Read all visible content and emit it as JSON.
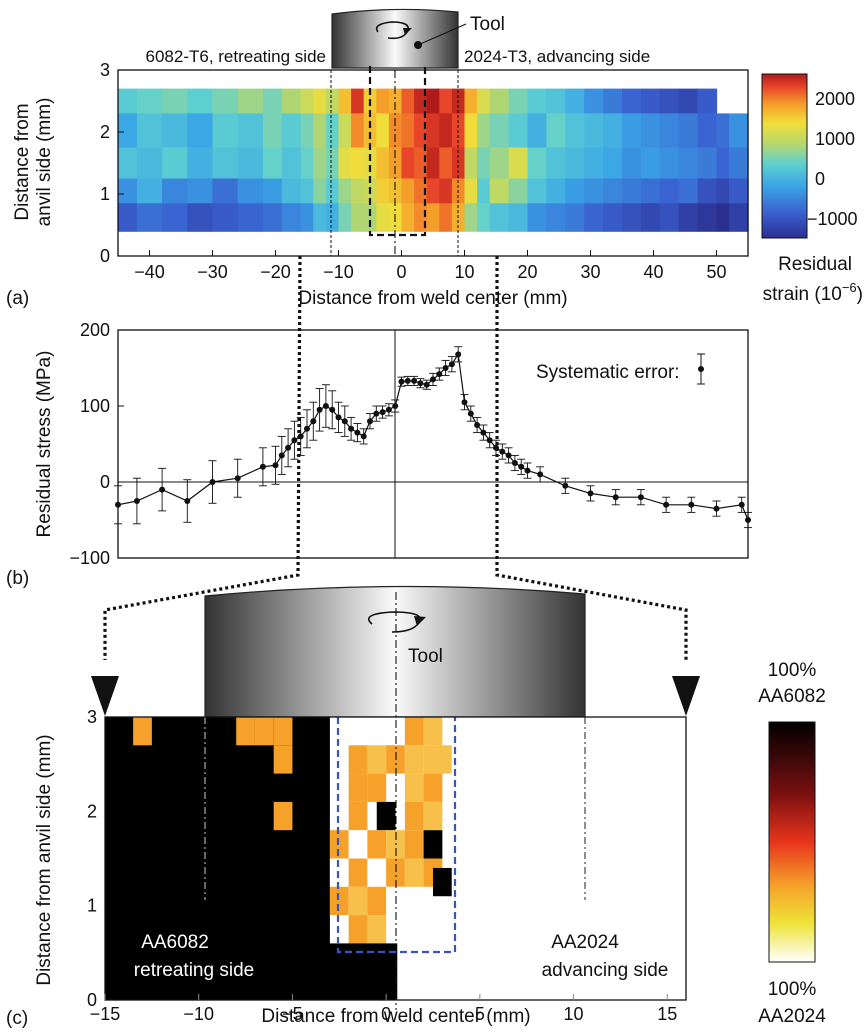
{
  "panels": {
    "a": {
      "panel_label": "(a)",
      "left_material": "6082-T6, retreating side",
      "right_material": "2024-T3, advancing side",
      "tool_label": "Tool",
      "colorbar_title_line1": "Residual",
      "colorbar_title_line2": "strain (10",
      "colorbar_title_exp": "−6",
      "colorbar_title_close": ")",
      "colorbar_ticks": [
        "2000",
        "1000",
        "0",
        "−1000"
      ]
    },
    "b": {
      "panel_label": "(b)",
      "systematic_error_label": "Systematic error:"
    },
    "c": {
      "panel_label": "(c)",
      "tool_label": "Tool",
      "left_region_line1": "AA6082",
      "left_region_line2": "retreating side",
      "right_region_line1": "AA2024",
      "right_region_line2": "advancing side",
      "colorbar_top_line1": "100%",
      "colorbar_top_line2": "AA6082",
      "colorbar_bottom_line1": "100%",
      "colorbar_bottom_line2": "AA2024"
    }
  },
  "colors": {
    "tool_dark": "#2a2a2a",
    "tool_light": "#ffffff",
    "blue_dash": "#3a55b8",
    "orange_cell": "#f5a12a",
    "gold_cell": "#f7c04a"
  },
  "chart_data": [
    {
      "type": "heatmap",
      "xlabel": "Distance from weld center (mm)",
      "ylabel_line1": "Distance from",
      "ylabel_line2": "anvil side (mm)",
      "xlim": [
        -45,
        55
      ],
      "ylim": [
        0,
        3
      ],
      "xticks": [
        "−40",
        "−30",
        "−20",
        "−10",
        "0",
        "10",
        "20",
        "30",
        "40",
        "50"
      ],
      "yticks": [
        "0",
        "1",
        "2",
        "3"
      ],
      "color_range": [
        -1300,
        2400
      ],
      "rows_y": [
        2.5,
        2.0,
        1.5,
        1.0,
        0.6
      ],
      "columns": [
        {
          "x0": -45,
          "x1": -42,
          "v": [
            300,
            -100,
            200,
            -300,
            -800
          ]
        },
        {
          "x0": -42,
          "x1": -38,
          "v": [
            400,
            200,
            100,
            0,
            -600
          ]
        },
        {
          "x0": -38,
          "x1": -34,
          "v": [
            500,
            100,
            300,
            -400,
            -700
          ]
        },
        {
          "x0": -34,
          "x1": -30,
          "v": [
            350,
            -100,
            0,
            -300,
            -900
          ]
        },
        {
          "x0": -30,
          "x1": -26,
          "v": [
            500,
            300,
            200,
            -600,
            -800
          ]
        },
        {
          "x0": -26,
          "x1": -22,
          "v": [
            700,
            200,
            100,
            -300,
            -700
          ]
        },
        {
          "x0": -22,
          "x1": -19,
          "v": [
            500,
            500,
            400,
            -200,
            -600
          ]
        },
        {
          "x0": -19,
          "x1": -16,
          "v": [
            800,
            300,
            200,
            100,
            -400
          ]
        },
        {
          "x0": -16,
          "x1": -14,
          "v": [
            1000,
            500,
            400,
            200,
            -300
          ]
        },
        {
          "x0": -14,
          "x1": -12,
          "v": [
            1200,
            800,
            700,
            600,
            100
          ]
        },
        {
          "x0": -12,
          "x1": -10,
          "v": [
            900,
            400,
            500,
            300,
            0
          ]
        },
        {
          "x0": -10,
          "x1": -8,
          "v": [
            1500,
            1000,
            1200,
            700,
            500
          ]
        },
        {
          "x0": -8,
          "x1": -6,
          "v": [
            2200,
            1800,
            1300,
            900,
            800
          ]
        },
        {
          "x0": -6,
          "x1": -4,
          "v": [
            1400,
            1500,
            1200,
            1000,
            800
          ]
        },
        {
          "x0": -4,
          "x1": -2,
          "v": [
            1700,
            1300,
            1500,
            1400,
            1200
          ]
        },
        {
          "x0": -2,
          "x1": 0,
          "v": [
            1600,
            1800,
            1700,
            1500,
            1300
          ]
        },
        {
          "x0": 0,
          "x1": 2,
          "v": [
            2000,
            1900,
            2100,
            1700,
            1600
          ]
        },
        {
          "x0": 2,
          "x1": 4,
          "v": [
            2300,
            2100,
            2000,
            1900,
            1800
          ]
        },
        {
          "x0": 4,
          "x1": 6,
          "v": [
            2400,
            2200,
            2300,
            2100,
            1700
          ]
        },
        {
          "x0": 6,
          "x1": 8,
          "v": [
            2100,
            2300,
            2000,
            2200,
            1900
          ]
        },
        {
          "x0": 8,
          "x1": 10,
          "v": [
            2300,
            2100,
            2200,
            1800,
            1600
          ]
        },
        {
          "x0": 10,
          "x1": 12,
          "v": [
            1600,
            1300,
            900,
            1200,
            700
          ]
        },
        {
          "x0": 12,
          "x1": 14,
          "v": [
            1100,
            700,
            500,
            300,
            400
          ]
        },
        {
          "x0": 14,
          "x1": 17,
          "v": [
            800,
            500,
            700,
            900,
            200
          ]
        },
        {
          "x0": 17,
          "x1": 20,
          "v": [
            500,
            300,
            1100,
            600,
            100
          ]
        },
        {
          "x0": 20,
          "x1": 23,
          "v": [
            300,
            0,
            400,
            200,
            -300
          ]
        },
        {
          "x0": 23,
          "x1": 26,
          "v": [
            200,
            400,
            200,
            0,
            -400
          ]
        },
        {
          "x0": 26,
          "x1": 29,
          "v": [
            0,
            200,
            100,
            -200,
            -500
          ]
        },
        {
          "x0": 29,
          "x1": 32,
          "v": [
            -300,
            100,
            0,
            -300,
            -700
          ]
        },
        {
          "x0": 32,
          "x1": 35,
          "v": [
            -500,
            0,
            -100,
            -400,
            -800
          ]
        },
        {
          "x0": 35,
          "x1": 38,
          "v": [
            -700,
            -200,
            -300,
            -500,
            -900
          ]
        },
        {
          "x0": 38,
          "x1": 41,
          "v": [
            -800,
            -300,
            -200,
            -600,
            -1000
          ]
        },
        {
          "x0": 41,
          "x1": 44,
          "v": [
            -900,
            -400,
            -300,
            -700,
            -900
          ]
        },
        {
          "x0": 44,
          "x1": 47,
          "v": [
            -1000,
            -500,
            -400,
            -600,
            -1100
          ]
        },
        {
          "x0": 47,
          "x1": 50,
          "v": [
            -800,
            -700,
            -500,
            -900,
            -1200
          ]
        },
        {
          "x0": 50,
          "x1": 52,
          "v": [
            0,
            -600,
            -700,
            -1000,
            -1300
          ]
        },
        {
          "x0": 52,
          "x1": 55,
          "v": [
            0,
            -300,
            -500,
            -800,
            -1100
          ]
        }
      ]
    },
    {
      "type": "line",
      "xlabel": "",
      "ylabel": "Residual stress (MPa)",
      "xlim": [
        -45,
        55
      ],
      "ylim": [
        -100,
        200
      ],
      "yticks": [
        "−100",
        "0",
        "100",
        "200"
      ],
      "x": [
        -45,
        -42,
        -38,
        -34,
        -30,
        -26,
        -22,
        -20,
        -19,
        -18,
        -17,
        -16,
        -15,
        -14,
        -13,
        -12,
        -11,
        -10,
        -9,
        -8,
        -7,
        -6,
        -5,
        -4,
        -3,
        -2,
        -1,
        0,
        1,
        2,
        3,
        4,
        5,
        6,
        7,
        8,
        9,
        10,
        11,
        12,
        13,
        14,
        15,
        16,
        17,
        18,
        19,
        20,
        22,
        26,
        30,
        34,
        38,
        42,
        46,
        50,
        54,
        58
      ],
      "y": [
        -30,
        -25,
        -10,
        -25,
        0,
        5,
        20,
        22,
        35,
        45,
        55,
        60,
        70,
        80,
        95,
        100,
        95,
        85,
        80,
        70,
        65,
        60,
        80,
        90,
        92,
        95,
        100,
        132,
        133,
        133,
        130,
        128,
        135,
        142,
        150,
        155,
        168,
        105,
        90,
        75,
        65,
        55,
        45,
        40,
        35,
        25,
        20,
        15,
        10,
        -5,
        -15,
        -20,
        -20,
        -30,
        -30,
        -35,
        -30,
        -50
      ],
      "err": [
        25,
        30,
        28,
        28,
        28,
        25,
        25,
        25,
        25,
        25,
        25,
        25,
        25,
        25,
        28,
        28,
        25,
        20,
        20,
        15,
        12,
        10,
        10,
        10,
        8,
        8,
        8,
        6,
        6,
        6,
        6,
        6,
        8,
        8,
        10,
        10,
        10,
        10,
        10,
        10,
        10,
        10,
        10,
        10,
        10,
        10,
        10,
        10,
        10,
        10,
        10,
        10,
        10,
        10,
        10,
        10,
        10,
        10
      ]
    },
    {
      "type": "heatmap",
      "xlabel": "Distance from weld center (mm)",
      "ylabel": "Distance from anvil side (mm)",
      "xlim": [
        -15,
        16
      ],
      "ylim": [
        0,
        3
      ],
      "xticks": [
        "−15",
        "−10",
        "−5",
        "0",
        "5",
        "10",
        "15"
      ],
      "yticks": [
        "0",
        "1",
        "2",
        "3"
      ],
      "background_left": "AA6082",
      "cells": [
        {
          "x": -13,
          "y": 3.0,
          "c": "orange"
        },
        {
          "x": -7.5,
          "y": 3.0,
          "c": "orange"
        },
        {
          "x": -6.5,
          "y": 3.0,
          "c": "orange"
        },
        {
          "x": -5.5,
          "y": 3.0,
          "c": "orange"
        },
        {
          "x": -5.5,
          "y": 2.7,
          "c": "orange"
        },
        {
          "x": -5.5,
          "y": 2.1,
          "c": "orange"
        },
        {
          "x": 1.5,
          "y": 3.0,
          "c": "orange"
        },
        {
          "x": 2.5,
          "y": 3.0,
          "c": "gold"
        },
        {
          "x": 3.0,
          "y": 2.7,
          "c": "gold"
        },
        {
          "x": -1.5,
          "y": 2.7,
          "c": "orange"
        },
        {
          "x": -0.5,
          "y": 2.7,
          "c": "gold"
        },
        {
          "x": 0.5,
          "y": 2.7,
          "c": "orange"
        },
        {
          "x": 1.5,
          "y": 2.7,
          "c": "gold"
        },
        {
          "x": 2.5,
          "y": 2.7,
          "c": "gold"
        },
        {
          "x": -1.5,
          "y": 2.4,
          "c": "orange"
        },
        {
          "x": -0.5,
          "y": 2.4,
          "c": "orange"
        },
        {
          "x": 0.0,
          "y": 2.1,
          "c": "black"
        },
        {
          "x": 1.5,
          "y": 2.4,
          "c": "gold"
        },
        {
          "x": 2.5,
          "y": 2.4,
          "c": "orange"
        },
        {
          "x": -1.5,
          "y": 2.1,
          "c": "orange"
        },
        {
          "x": 1.5,
          "y": 2.1,
          "c": "orange"
        },
        {
          "x": 2.5,
          "y": 2.1,
          "c": "gold"
        },
        {
          "x": -2.5,
          "y": 1.8,
          "c": "orange"
        },
        {
          "x": -1.5,
          "y": 1.8,
          "c": "white"
        },
        {
          "x": -0.5,
          "y": 1.8,
          "c": "orange"
        },
        {
          "x": 0.5,
          "y": 1.8,
          "c": "gold"
        },
        {
          "x": 1.5,
          "y": 1.8,
          "c": "orange"
        },
        {
          "x": 2.5,
          "y": 1.8,
          "c": "black"
        },
        {
          "x": -2.5,
          "y": 1.5,
          "c": "white"
        },
        {
          "x": -1.5,
          "y": 1.5,
          "c": "orange"
        },
        {
          "x": -0.5,
          "y": 1.5,
          "c": "white"
        },
        {
          "x": 0.5,
          "y": 1.5,
          "c": "orange"
        },
        {
          "x": 1.5,
          "y": 1.5,
          "c": "gold"
        },
        {
          "x": 2.5,
          "y": 1.5,
          "c": "orange"
        },
        {
          "x": 3.0,
          "y": 1.4,
          "c": "black"
        },
        {
          "x": -2.5,
          "y": 1.2,
          "c": "orange"
        },
        {
          "x": -1.5,
          "y": 1.2,
          "c": "gold"
        },
        {
          "x": -0.5,
          "y": 1.2,
          "c": "orange"
        },
        {
          "x": 0.5,
          "y": 1.2,
          "c": "white"
        },
        {
          "x": -1.5,
          "y": 0.9,
          "c": "orange"
        },
        {
          "x": -0.5,
          "y": 0.9,
          "c": "gold"
        },
        {
          "x": -1.5,
          "y": 0.6,
          "c": "black"
        },
        {
          "x": -0.5,
          "y": 0.6,
          "c": "black"
        }
      ]
    }
  ]
}
